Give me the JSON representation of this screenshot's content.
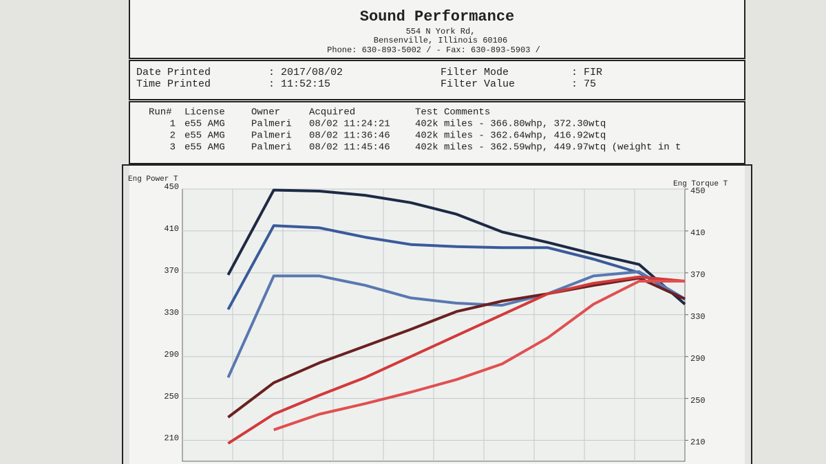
{
  "header": {
    "title": "Sound Performance",
    "address": [
      "554 N York Rd,",
      "Bensenville, Illinois  60106",
      "Phone: 630-893-5002 /  - Fax: 630-893-5903 /"
    ]
  },
  "info": {
    "separator": ":",
    "left": [
      [
        "Date Printed",
        "2017/08/02"
      ],
      [
        "Time Printed",
        "11:52:15"
      ]
    ],
    "right": [
      [
        "Filter Mode",
        "FIR"
      ],
      [
        "Filter Value",
        "75"
      ]
    ]
  },
  "runs": {
    "columns": [
      "Run#",
      "License",
      "Owner",
      "Acquired",
      "Test Comments"
    ],
    "rows": [
      [
        "1",
        "e55 AMG",
        "Palmeri",
        "08/02 11:24:21",
        "402k miles - 366.80whp, 372.30wtq"
      ],
      [
        "2",
        "e55 AMG",
        "Palmeri",
        "08/02 11:36:46",
        "402k miles - 362.64whp, 416.92wtq"
      ],
      [
        "3",
        "e55 AMG",
        "Palmeri",
        "08/02 11:45:46",
        "402k miles - 362.59whp, 449.97wtq (weight in t"
      ]
    ]
  },
  "chart_data": {
    "type": "line",
    "y_label": "Eng Power T",
    "y2_label": "Eng Torque T",
    "categories": [
      null,
      null,
      null,
      null,
      null,
      null,
      null,
      null,
      null,
      null,
      null,
      null
    ],
    "ylim": [
      190,
      450
    ],
    "yticks": [
      450,
      410,
      370,
      330,
      290,
      250,
      210
    ],
    "y2lim": [
      190,
      450
    ],
    "y2ticks": [
      450,
      410,
      370,
      330,
      290,
      250,
      210
    ],
    "grid": true,
    "series": [
      {
        "color": "#1e2a44",
        "axis": "y2",
        "values": [
          null,
          368,
          449,
          448,
          444,
          437,
          426,
          409,
          399,
          388,
          378,
          340
        ]
      },
      {
        "color": "#3a5a9a",
        "axis": "y2",
        "values": [
          null,
          335,
          415,
          413,
          404,
          397,
          395,
          394,
          394,
          383,
          370,
          345
        ]
      },
      {
        "color": "#5a78b0",
        "axis": "y2",
        "values": [
          null,
          270,
          367,
          367,
          358,
          346,
          341,
          339,
          350,
          367,
          371,
          345
        ]
      },
      {
        "color": "#6a2020",
        "values": [
          null,
          232,
          265,
          284,
          300,
          316,
          333,
          343,
          350,
          358,
          365,
          345
        ]
      },
      {
        "color": "#d23a3a",
        "values": [
          null,
          207,
          235,
          253,
          270,
          290,
          310,
          330,
          350,
          360,
          366,
          362
        ]
      },
      {
        "color": "#e05050",
        "values": [
          null,
          null,
          220,
          235,
          245,
          256,
          268,
          283,
          308,
          340,
          362,
          362
        ]
      }
    ]
  }
}
